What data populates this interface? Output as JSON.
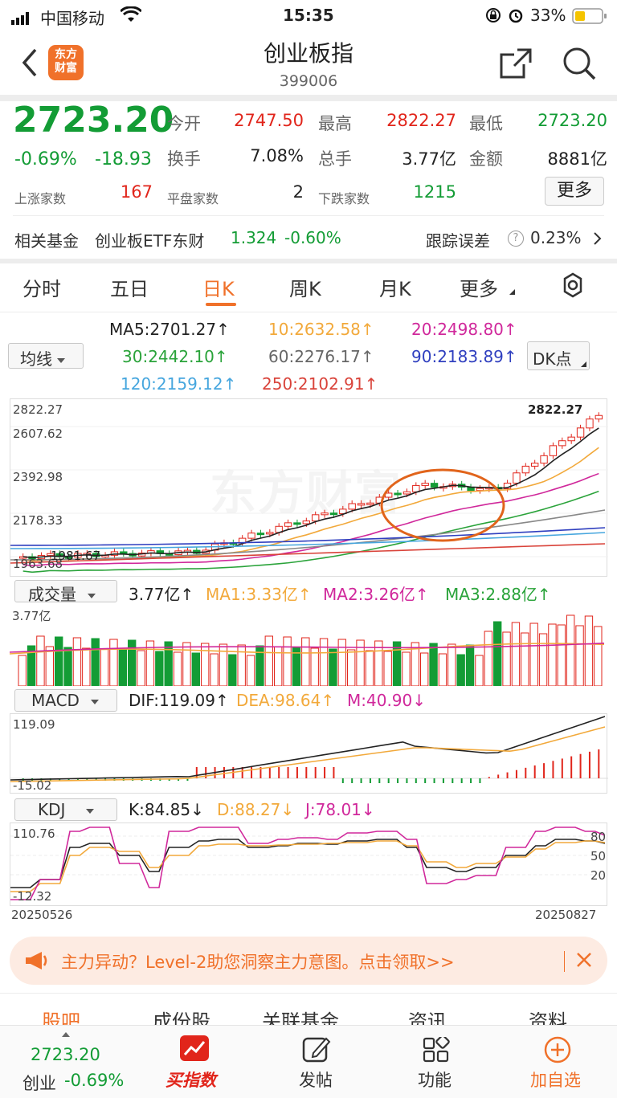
{
  "status": {
    "carrier": "中国移动",
    "time": "15:35",
    "battery": "33%"
  },
  "nav": {
    "title": "创业板指",
    "code": "399006",
    "logo_line1": "东方",
    "logo_line2": "财富"
  },
  "quote": {
    "price": "2723.20",
    "pct": "-0.69%",
    "chg": "-18.93",
    "open_label": "今开",
    "open": "2747.50",
    "high_label": "最高",
    "high": "2822.27",
    "low_label": "最低",
    "low": "2723.20",
    "turnover_label": "换手",
    "turnover": "7.08%",
    "vol_label": "总手",
    "vol": "3.77亿",
    "amt_label": "金额",
    "amt": "8881亿",
    "up_label": "上涨家数",
    "up": "167",
    "flat_label": "平盘家数",
    "flat": "2",
    "down_label": "下跌家数",
    "down": "1215",
    "more": "更多"
  },
  "fund": {
    "label": "相关基金",
    "name": "创业板ETF东财",
    "price": "1.324",
    "pct": "-0.60%",
    "track_label": "跟踪误差",
    "track": "0.23%"
  },
  "tabs": [
    "分时",
    "五日",
    "日K",
    "周K",
    "月K",
    "更多"
  ],
  "ma": {
    "selector": "均线",
    "dk": "DK点",
    "ma5": "MA5:2701.27↑",
    "ma10": "10:2632.58↑",
    "ma20": "20:2498.80↑",
    "ma30": "30:2442.10↑",
    "ma60": "60:2276.17↑",
    "ma90": "90:2183.89↑",
    "ma120": "120:2159.12↑",
    "ma250": "250:2102.91↑"
  },
  "colors": {
    "up": "#e1251b",
    "down": "#139c35",
    "ma5": "#222222",
    "ma10": "#f2a93b",
    "ma20": "#d0289b",
    "ma30": "#2aa33a",
    "ma60": "#888888",
    "ma90": "#2f3fbf",
    "ma120": "#46a6de",
    "ma250": "#d9433a",
    "accent": "#f0712a"
  },
  "kline": {
    "axis": [
      "2822.27",
      "2607.62",
      "2392.98",
      "2178.33",
      "1963.68"
    ],
    "hi_label": "2822.27",
    "lo_label": "1981.67",
    "watermark": "东方财富"
  },
  "volume": {
    "selector": "成交量",
    "value": "3.77亿↑",
    "ma1": "MA1:3.33亿↑",
    "ma2": "MA2:3.26亿↑",
    "ma3": "MA3:2.88亿↑",
    "axis_top": "3.77亿"
  },
  "macd": {
    "selector": "MACD",
    "dif": "DIF:119.09↑",
    "dea": "DEA:98.64↑",
    "m": "M:40.90↓",
    "axis_top": "119.09",
    "axis_bottom": "-15.02"
  },
  "kdj": {
    "selector": "KDJ",
    "k": "K:84.85↓",
    "d": "D:88.27↓",
    "j": "J:78.01↓",
    "axis_top": "110.76",
    "axis_bottom": "-12.32",
    "lv80": "80",
    "lv50": "50",
    "lv20": "20",
    "date_start": "20250526",
    "date_end": "20250827"
  },
  "banner": {
    "text": "主力异动？Level-2助您洞察主力意图。点击领取>>"
  },
  "subtabs": [
    "股吧",
    "成份股",
    "关联基金",
    "资讯",
    "资料"
  ],
  "bottom": {
    "price": "2723.20",
    "name": "创业",
    "pct": "-0.69%",
    "buy": "买指数",
    "post": "发帖",
    "func": "功能",
    "add": "加自选"
  }
}
